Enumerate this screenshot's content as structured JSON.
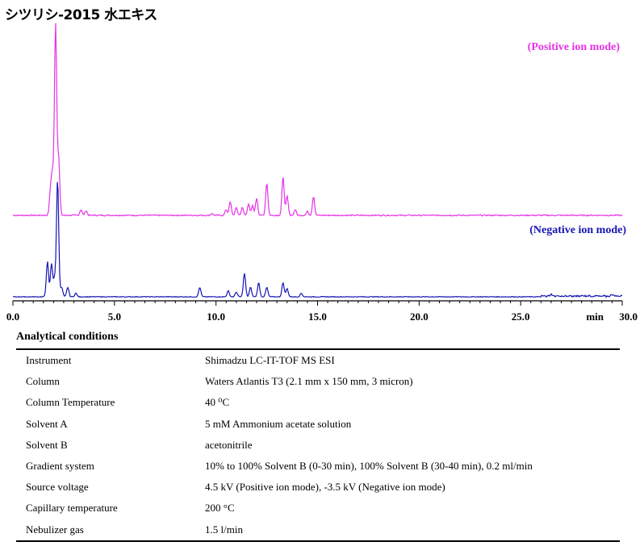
{
  "title": "シツリシ-2015 水エキス",
  "chart_data": {
    "type": "line",
    "xlim": [
      0,
      30
    ],
    "x_ticks": [
      "0.0",
      "5.0",
      "10.0",
      "15.0",
      "20.0",
      "25.0",
      "30.0"
    ],
    "x_unit": "min",
    "series": [
      {
        "name": "(Positive ion mode)",
        "color": "#e632e6",
        "baseline": 2,
        "peaks": [
          [
            1.85,
            12
          ],
          [
            1.95,
            20
          ],
          [
            2.1,
            100
          ],
          [
            2.25,
            30
          ],
          [
            3.35,
            3
          ],
          [
            3.6,
            2.5
          ],
          [
            9.8,
            1
          ],
          [
            10.5,
            3
          ],
          [
            10.7,
            7
          ],
          [
            11.0,
            4
          ],
          [
            11.3,
            4
          ],
          [
            11.6,
            6
          ],
          [
            11.8,
            5
          ],
          [
            12.0,
            9
          ],
          [
            12.5,
            17
          ],
          [
            13.3,
            20
          ],
          [
            13.5,
            10
          ],
          [
            13.9,
            3
          ],
          [
            14.5,
            2
          ],
          [
            14.8,
            10
          ]
        ]
      },
      {
        "name": "(Negative ion mode)",
        "color": "#1515b4",
        "baseline": 2,
        "peaks": [
          [
            1.7,
            30
          ],
          [
            1.9,
            28
          ],
          [
            2.05,
            15
          ],
          [
            2.2,
            100
          ],
          [
            2.4,
            8
          ],
          [
            2.7,
            8
          ],
          [
            3.1,
            3
          ],
          [
            9.2,
            8
          ],
          [
            10.6,
            5
          ],
          [
            11.0,
            4
          ],
          [
            11.4,
            20
          ],
          [
            11.7,
            8
          ],
          [
            12.1,
            12
          ],
          [
            12.5,
            8
          ],
          [
            13.3,
            12
          ],
          [
            13.5,
            7
          ],
          [
            14.2,
            3
          ],
          [
            26.5,
            1.5
          ],
          [
            29.5,
            1.5
          ]
        ]
      }
    ]
  },
  "conditions": {
    "title": "Analytical conditions",
    "rows": [
      {
        "key": "Instrument",
        "value": "Shimadzu LC-IT-TOF MS ESI"
      },
      {
        "key": "Column",
        "value": "Waters Atlantis T3 (2.1 mm x 150 mm, 3 micron)"
      },
      {
        "key": "Column Temperature",
        "value": "40 ⁰C"
      },
      {
        "key": "Solvent A",
        "value": "5 mM Ammonium acetate solution"
      },
      {
        "key": "Solvent B",
        "value": "acetonitrile"
      },
      {
        "key": "Gradient system",
        "value": "10% to 100% Solvent B (0-30 min), 100% Solvent B (30-40 min), 0.2 ml/min"
      },
      {
        "key": "Source voltage",
        "value": "4.5 kV (Positive ion mode), -3.5 kV (Negative ion mode)"
      },
      {
        "key": "Capillary temperature",
        "value": "200 °C"
      },
      {
        "key": "Nebulizer gas",
        "value": "1.5 l/min"
      }
    ]
  }
}
